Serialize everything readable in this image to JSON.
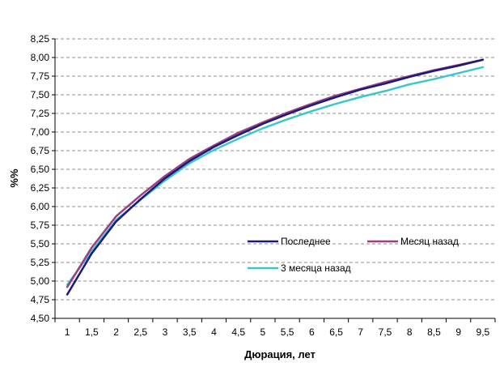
{
  "chart_data": {
    "type": "line",
    "title": "",
    "xlabel": "Дюрация, лет",
    "ylabel": "%%",
    "x": [
      1,
      1.5,
      2,
      2.5,
      3,
      3.5,
      4,
      4.5,
      5,
      5.5,
      6,
      6.5,
      7,
      7.5,
      8,
      8.5,
      9,
      9.5
    ],
    "x_tick_labels": [
      "1",
      "1,5",
      "2",
      "2,5",
      "3",
      "3,5",
      "4",
      "4,5",
      "5",
      "5,5",
      "6",
      "6,5",
      "7",
      "7,5",
      "8",
      "8,5",
      "9",
      "9,5"
    ],
    "ylim": [
      4.5,
      8.25
    ],
    "y_ticks": [
      4.5,
      4.75,
      5.0,
      5.25,
      5.5,
      5.75,
      6.0,
      6.25,
      6.5,
      6.75,
      7.0,
      7.25,
      7.5,
      7.75,
      8.0,
      8.25
    ],
    "y_tick_labels": [
      "4,50",
      "4,75",
      "5,00",
      "5,25",
      "5,50",
      "5,75",
      "6,00",
      "6,25",
      "6,50",
      "6,75",
      "7,00",
      "7,25",
      "7,50",
      "7,75",
      "8,00",
      "8,25"
    ],
    "grid": {
      "horizontal": true,
      "style": "dashed"
    },
    "legend_position": "inside-lower-right",
    "series": [
      {
        "name": "Последнее",
        "color": "#1a1a7a",
        "values": [
          4.82,
          5.37,
          5.8,
          6.1,
          6.38,
          6.61,
          6.8,
          6.96,
          7.11,
          7.24,
          7.36,
          7.47,
          7.57,
          7.65,
          7.74,
          7.82,
          7.89,
          7.97
        ]
      },
      {
        "name": "Месяц назад",
        "color": "#9b3f7f",
        "values": [
          4.92,
          5.45,
          5.87,
          6.15,
          6.41,
          6.64,
          6.82,
          6.99,
          7.13,
          7.26,
          7.38,
          7.49,
          7.58,
          7.67,
          7.75,
          7.83,
          7.9,
          7.97
        ]
      },
      {
        "name": "3 месяца назад",
        "color": "#3cc8c8",
        "values": [
          4.95,
          5.4,
          5.82,
          6.09,
          6.35,
          6.58,
          6.76,
          6.91,
          7.05,
          7.17,
          7.28,
          7.38,
          7.47,
          7.55,
          7.64,
          7.71,
          7.79,
          7.87
        ]
      }
    ]
  }
}
